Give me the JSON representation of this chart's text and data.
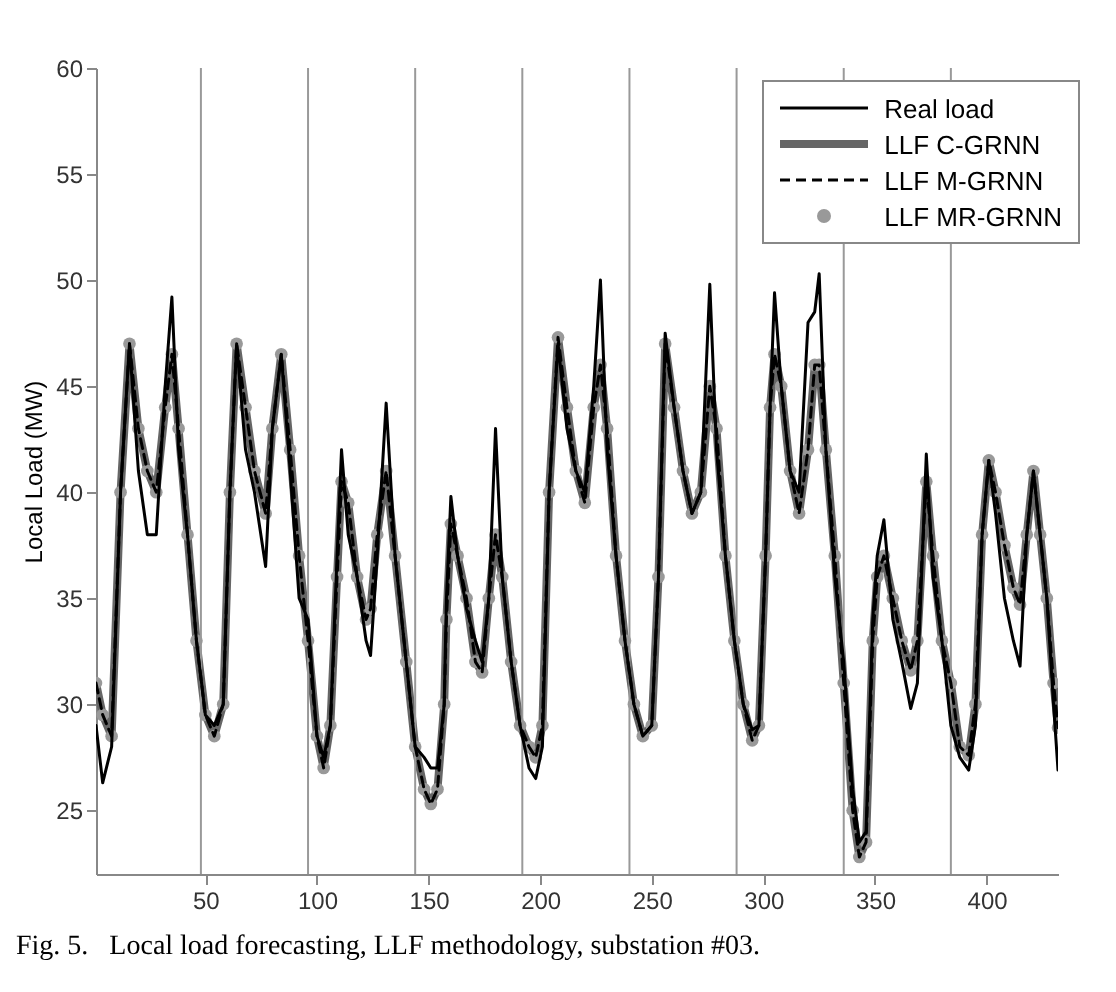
{
  "chart_data": {
    "type": "line",
    "ylabel": "Local Load (MW)",
    "xlim": [
      1,
      432
    ],
    "ylim": [
      22,
      60
    ],
    "xticks": [
      50,
      100,
      150,
      200,
      250,
      300,
      350,
      400
    ],
    "yticks": [
      25,
      30,
      35,
      40,
      45,
      50,
      55,
      60
    ],
    "grid": false,
    "legend": "top right",
    "x": [
      1,
      4,
      8,
      12,
      16,
      20,
      24,
      28,
      32,
      35,
      38,
      42,
      46,
      50,
      54,
      58,
      61,
      64,
      68,
      72,
      77,
      80,
      84,
      88,
      92,
      96,
      100,
      103,
      106,
      109,
      111,
      114,
      118,
      122,
      124,
      127,
      131,
      135,
      140,
      144,
      148,
      151,
      154,
      157,
      158,
      160,
      163,
      167,
      171,
      174,
      177,
      180,
      183,
      187,
      191,
      195,
      198,
      201,
      204,
      208,
      212,
      216,
      220,
      224,
      227,
      230,
      234,
      238,
      242,
      246,
      250,
      253,
      256,
      260,
      264,
      268,
      272,
      276,
      279,
      283,
      287,
      291,
      295,
      298,
      301,
      303,
      305,
      308,
      312,
      316,
      320,
      323,
      325,
      328,
      332,
      336,
      340,
      343,
      346,
      349,
      351,
      354,
      358,
      362,
      366,
      369,
      373,
      376,
      380,
      384,
      388,
      392,
      395,
      398,
      401,
      404,
      408,
      412,
      415,
      418,
      421,
      424,
      427,
      430,
      432
    ],
    "series": [
      {
        "name": "Real load",
        "color": "#000000",
        "line_style": "solid",
        "values": [
          29,
          26.3,
          28,
          40,
          47,
          41,
          38,
          38,
          45,
          49.2,
          42,
          38,
          33,
          29.5,
          29,
          30,
          40,
          47,
          42,
          40,
          36.5,
          43,
          46.5,
          41,
          35,
          34,
          28.5,
          27.5,
          29,
          37,
          42,
          38,
          36,
          33,
          32.3,
          37,
          44.2,
          37,
          32,
          28,
          27.5,
          27,
          27,
          30,
          35,
          39.8,
          37,
          34.5,
          33,
          32,
          35,
          43,
          36,
          32,
          29,
          27,
          26.5,
          28,
          40,
          47,
          43,
          41,
          40,
          45,
          50,
          42,
          37,
          33,
          30,
          28.5,
          29,
          36,
          47.5,
          44,
          41,
          39,
          40,
          49.8,
          42,
          37,
          33,
          30,
          28.8,
          29,
          37,
          44,
          49.4,
          45,
          41,
          40,
          48,
          48.5,
          50.3,
          42,
          36,
          32,
          26,
          23.5,
          24,
          34,
          37,
          38.7,
          34,
          32,
          29.8,
          31,
          41.8,
          36,
          33,
          29,
          27.5,
          26.9,
          29,
          38,
          41.5,
          39,
          35,
          33,
          31.8,
          38,
          41,
          38,
          35,
          30,
          26.9
        ]
      },
      {
        "name": "LLF C-GRNN",
        "color": "#666666",
        "line_style": "solid",
        "values": [
          31,
          29.5,
          28.5,
          40,
          47,
          43,
          41,
          40,
          44,
          46.5,
          43,
          38,
          33,
          29.5,
          28.5,
          30,
          40,
          47,
          44,
          41,
          39,
          43,
          46.5,
          42,
          37,
          33,
          28.5,
          27,
          29,
          36,
          40.5,
          39.5,
          36,
          34,
          34.5,
          38,
          41,
          37,
          32,
          28,
          26,
          25.3,
          26,
          30,
          34,
          38.5,
          37,
          35,
          32,
          31.5,
          35,
          38,
          36,
          32,
          29,
          28,
          27.5,
          29,
          40,
          47.3,
          44,
          41,
          39.5,
          44,
          46,
          43,
          37,
          33,
          30,
          28.5,
          29,
          36,
          47,
          44,
          41,
          39,
          40,
          45,
          43,
          37,
          33,
          30,
          28.3,
          29,
          37,
          44,
          46.5,
          45,
          41,
          39,
          42,
          46,
          46,
          42,
          37,
          31,
          25,
          22.8,
          23.5,
          33,
          36,
          37,
          35,
          33,
          31.6,
          33,
          40.5,
          37,
          33,
          31,
          28,
          27.6,
          30,
          38,
          41.5,
          40,
          37.5,
          35.5,
          34.7,
          38,
          41,
          38,
          35,
          31,
          28.9
        ]
      },
      {
        "name": "LLF M-GRNN",
        "color": "#000000",
        "line_style": "dashed",
        "values": [
          31,
          29.5,
          28.5,
          40,
          47,
          43,
          41,
          40,
          44,
          46.5,
          43,
          38,
          33,
          29.5,
          28.5,
          30,
          40,
          47,
          44,
          41,
          39,
          43,
          46.5,
          42,
          37,
          33,
          28.5,
          27,
          29,
          36,
          40.5,
          39.5,
          36,
          34,
          34.5,
          38,
          41,
          37,
          32,
          28,
          26,
          25.3,
          26,
          30,
          34,
          38.5,
          37,
          35,
          32,
          31.5,
          35,
          38,
          36,
          32,
          29,
          28,
          27.5,
          29,
          40,
          47.3,
          44,
          41,
          39.5,
          44,
          46,
          43,
          37,
          33,
          30,
          28.5,
          29,
          36,
          47,
          44,
          41,
          39,
          40,
          45,
          43,
          37,
          33,
          30,
          28.3,
          29,
          37,
          44,
          46.5,
          45,
          41,
          39,
          42,
          46,
          46,
          42,
          37,
          31,
          25,
          22.8,
          23.5,
          33,
          36,
          37,
          35,
          33,
          31.6,
          33,
          40.5,
          37,
          33,
          31,
          28,
          27.6,
          30,
          38,
          41.5,
          40,
          37.5,
          35.5,
          34.7,
          38,
          41,
          38,
          35,
          31,
          28.9
        ]
      },
      {
        "name": "LLF MR-GRNN",
        "type": "scatter",
        "color": "#999999",
        "values": [
          31,
          29.5,
          28.5,
          40,
          47,
          43,
          41,
          40,
          44,
          46.5,
          43,
          38,
          33,
          29.5,
          28.5,
          30,
          40,
          47,
          44,
          41,
          39,
          43,
          46.5,
          42,
          37,
          33,
          28.5,
          27,
          29,
          36,
          40.5,
          39.5,
          36,
          34,
          34.5,
          38,
          41,
          37,
          32,
          28,
          26,
          25.3,
          26,
          30,
          34,
          38.5,
          37,
          35,
          32,
          31.5,
          35,
          38,
          36,
          32,
          29,
          28,
          27.5,
          29,
          40,
          47.3,
          44,
          41,
          39.5,
          44,
          46,
          43,
          37,
          33,
          30,
          28.5,
          29,
          36,
          47,
          44,
          41,
          39,
          40,
          45,
          43,
          37,
          33,
          30,
          28.3,
          29,
          37,
          44,
          46.5,
          45,
          41,
          39,
          42,
          46,
          46,
          42,
          37,
          31,
          25,
          22.8,
          23.5,
          33,
          36,
          37,
          35,
          33,
          31.6,
          33,
          40.5,
          37,
          33,
          31,
          28,
          27.6,
          30,
          38,
          41.5,
          40,
          37.5,
          35.5,
          34.7,
          38,
          41,
          38,
          35,
          31,
          28.9
        ]
      }
    ],
    "ref_lines": [
      {
        "axis": "x",
        "value": 48,
        "color": "#999999"
      },
      {
        "axis": "x",
        "value": 96,
        "color": "#999999"
      },
      {
        "axis": "x",
        "value": 144,
        "color": "#999999"
      },
      {
        "axis": "x",
        "value": 192,
        "color": "#999999"
      },
      {
        "axis": "x",
        "value": 240,
        "color": "#999999"
      },
      {
        "axis": "x",
        "value": 288,
        "color": "#999999"
      },
      {
        "axis": "x",
        "value": 336,
        "color": "#999999"
      },
      {
        "axis": "x",
        "value": 384,
        "color": "#999999"
      }
    ],
    "annotations": [
      "Fig. 5.   Local load forecasting, LLF methodology, substation #03."
    ]
  }
}
